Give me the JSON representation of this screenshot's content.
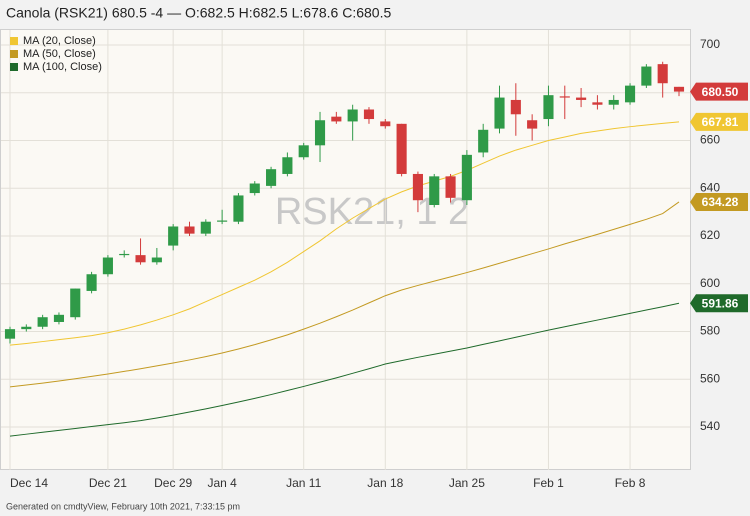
{
  "chart_data": {
    "type": "candlestick",
    "title": "Canola (RSK21) 680.5 -4 — O:682.5 H:682.5 L:678.6 C:680.5",
    "watermark": "RSK21, 1 2",
    "footer": "Generated on cmdtyView, February 10th 2021, 7:33:15 pm",
    "categories": [
      "Dec 14",
      null,
      null,
      null,
      null,
      null,
      "Dec 21",
      null,
      null,
      null,
      "Dec 29",
      null,
      null,
      "Jan 4",
      null,
      null,
      null,
      null,
      "Jan 11",
      null,
      null,
      null,
      null,
      "Jan 18",
      null,
      null,
      null,
      null,
      "Jan 25",
      null,
      null,
      null,
      null,
      "Feb 1",
      null,
      null,
      null,
      null,
      "Feb 8",
      null,
      null,
      null
    ],
    "open": [
      577,
      581,
      582,
      584,
      586,
      597,
      604,
      612,
      612,
      609,
      616,
      624,
      621,
      626,
      626,
      638,
      641,
      646,
      653,
      658,
      670,
      668,
      673,
      668,
      667,
      646,
      633,
      645,
      635,
      655,
      665,
      677,
      668.5,
      669,
      678.5,
      678,
      676,
      675,
      676,
      683,
      692,
      682.5
    ],
    "high": [
      582,
      583,
      587,
      588,
      598,
      605,
      612,
      614,
      619,
      615,
      625,
      626,
      627,
      631,
      638,
      643,
      649,
      655,
      659,
      672,
      672,
      675,
      674,
      669,
      667,
      647,
      646,
      646,
      656,
      667,
      683,
      684,
      671,
      683,
      683,
      682,
      679,
      679,
      684,
      692,
      693,
      682.5
    ],
    "low": [
      575,
      580,
      581,
      583,
      585,
      596,
      603,
      611,
      608,
      608,
      614,
      620,
      620,
      625,
      625,
      637,
      640,
      645,
      652,
      651,
      667,
      660,
      667,
      665,
      645,
      630,
      632,
      634,
      633,
      653,
      663,
      662,
      660,
      666,
      669,
      674,
      673,
      673,
      675,
      682,
      678,
      678.6
    ],
    "close": [
      581,
      582,
      586,
      587,
      598,
      604,
      611,
      612.5,
      609,
      611,
      624,
      621,
      626,
      626.5,
      637,
      642,
      648,
      653,
      658,
      668.5,
      668,
      673,
      669,
      666,
      646,
      635,
      645,
      636,
      654,
      664.5,
      678,
      671,
      665,
      679,
      678,
      677,
      675,
      677,
      683,
      691,
      684,
      680.5
    ],
    "up_color": "#2f9a48",
    "down_color": "#d33b3b",
    "last_close_label": "680.50",
    "series": [
      {
        "name": "MA (20, Close)",
        "color": "#f0c632",
        "last_value_label": "667.81",
        "values": [
          574.3,
          575,
          575.8,
          576.6,
          577.4,
          578.3,
          579.5,
          581,
          582.8,
          584.8,
          587,
          589.5,
          592.5,
          595.5,
          598.5,
          601.5,
          605,
          609,
          613.5,
          618,
          623,
          627.5,
          631.5,
          635.5,
          638.5,
          641,
          643,
          645,
          647.5,
          650.5,
          653.5,
          656,
          658,
          660,
          661.5,
          663,
          664,
          665,
          665.8,
          666.5,
          667.2,
          667.81
        ]
      },
      {
        "name": "MA (50, Close)",
        "color": "#c39a22",
        "last_value_label": "634.28",
        "values": [
          556.8,
          557.6,
          558.4,
          559.3,
          560.2,
          561.2,
          562.2,
          563.3,
          564.4,
          565.6,
          566.8,
          568.1,
          569.5,
          571,
          572.7,
          574.5,
          576.5,
          578.6,
          581,
          583.5,
          586.2,
          589,
          592,
          595,
          597.4,
          599.3,
          601.1,
          602.9,
          604.7,
          606.6,
          608.6,
          610.6,
          612.6,
          614.6,
          616.7,
          618.7,
          620.7,
          622.8,
          624.9,
          627,
          629.4,
          634.28
        ]
      },
      {
        "name": "MA (100, Close)",
        "color": "#1f6a2b",
        "last_value_label": "591.86",
        "values": [
          536.2,
          537,
          537.8,
          538.6,
          539.4,
          540.2,
          541,
          541.8,
          542.7,
          543.8,
          545,
          546.3,
          547.6,
          549,
          550.5,
          552,
          553.6,
          555.3,
          557,
          558.8,
          560.6,
          562.5,
          564.4,
          566.4,
          567.8,
          569.2,
          570.5,
          571.8,
          573.1,
          574.6,
          576.1,
          577.6,
          579.1,
          580.6,
          582,
          583.4,
          584.8,
          586.2,
          587.6,
          589,
          590.4,
          591.86
        ]
      }
    ],
    "ylim": [
      522,
      706.3
    ],
    "yticks": [
      540,
      560,
      580,
      600,
      620,
      640,
      660,
      680,
      700
    ],
    "grid": true
  }
}
